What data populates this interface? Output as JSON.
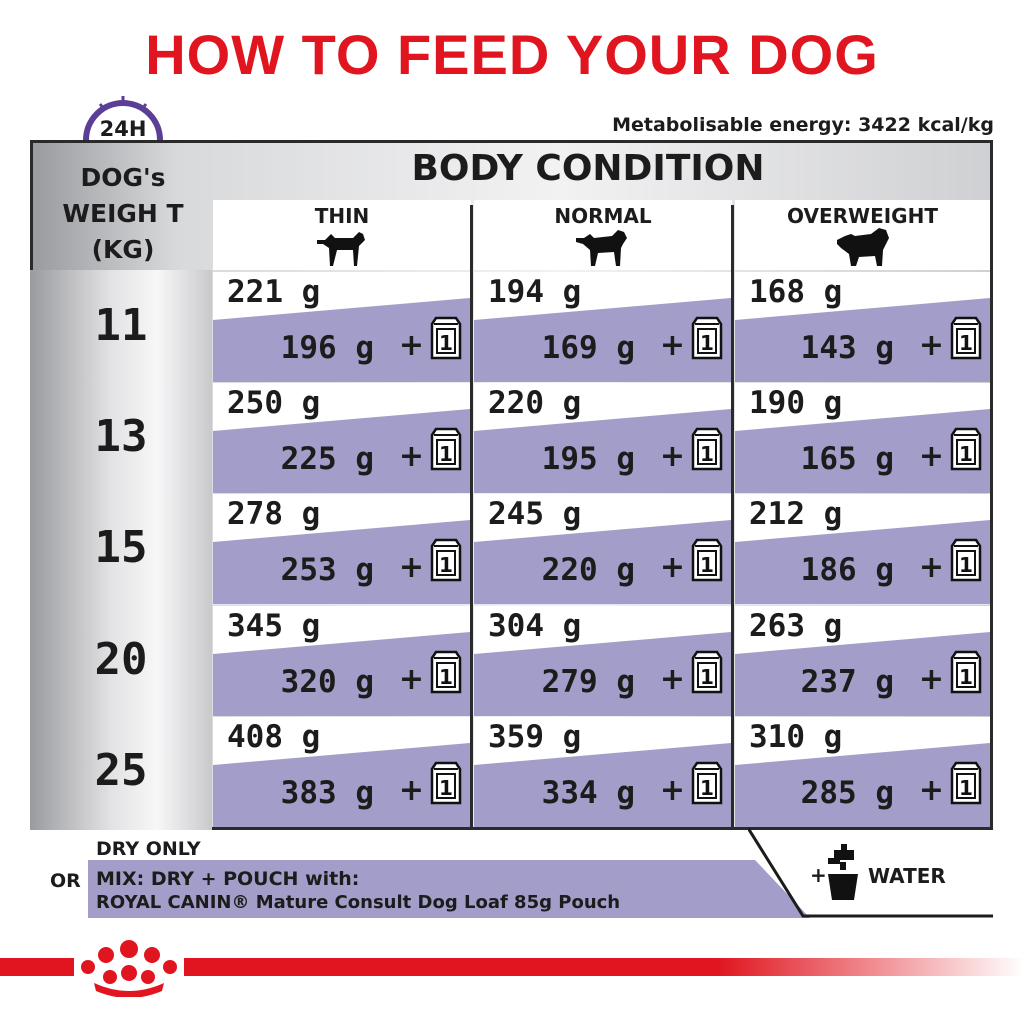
{
  "title": "HOW TO FEED YOUR DOG",
  "clock_label": "24H",
  "energy": "Metabolisable energy: 3422 kcal/kg",
  "weight_header": "DOG's WEIGH T (KG)",
  "body_condition": "BODY CONDITION",
  "conditions": [
    "THIN",
    "NORMAL",
    "OVERWEIGHT"
  ],
  "pouch_count": "1",
  "plus": "+",
  "rows": [
    {
      "weight": "11",
      "cells": [
        {
          "dry": "221 g",
          "mix": "196 g"
        },
        {
          "dry": "194 g",
          "mix": "169 g"
        },
        {
          "dry": "168 g",
          "mix": "143 g"
        }
      ]
    },
    {
      "weight": "13",
      "cells": [
        {
          "dry": "250 g",
          "mix": "225 g"
        },
        {
          "dry": "220 g",
          "mix": "195 g"
        },
        {
          "dry": "190 g",
          "mix": "165 g"
        }
      ]
    },
    {
      "weight": "15",
      "cells": [
        {
          "dry": "278 g",
          "mix": "253 g"
        },
        {
          "dry": "245 g",
          "mix": "220 g"
        },
        {
          "dry": "212 g",
          "mix": "186 g"
        }
      ]
    },
    {
      "weight": "20",
      "cells": [
        {
          "dry": "345 g",
          "mix": "320 g"
        },
        {
          "dry": "304 g",
          "mix": "279 g"
        },
        {
          "dry": "263 g",
          "mix": "237 g"
        }
      ]
    },
    {
      "weight": "25",
      "cells": [
        {
          "dry": "408 g",
          "mix": "383 g"
        },
        {
          "dry": "359 g",
          "mix": "334 g"
        },
        {
          "dry": "310 g",
          "mix": "285 g"
        }
      ]
    }
  ],
  "legend": {
    "dry_only": "DRY ONLY",
    "or": "OR",
    "mix_line1": "MIX: DRY + POUCH with:",
    "mix_line2": "ROYAL CANIN® Mature Consult Dog Loaf 85g Pouch",
    "water_plus": "+",
    "water": "WATER"
  },
  "colors": {
    "title_red": "#e0151f",
    "lavender": "#a39dc9",
    "clock_purple": "#5b3e96",
    "brand_red": "#e0151f"
  },
  "icons": [
    "clock-icon",
    "thin-dog-icon",
    "normal-dog-icon",
    "overweight-dog-icon",
    "pouch-icon",
    "tap-water-icon",
    "royal-canin-crown-logo"
  ]
}
